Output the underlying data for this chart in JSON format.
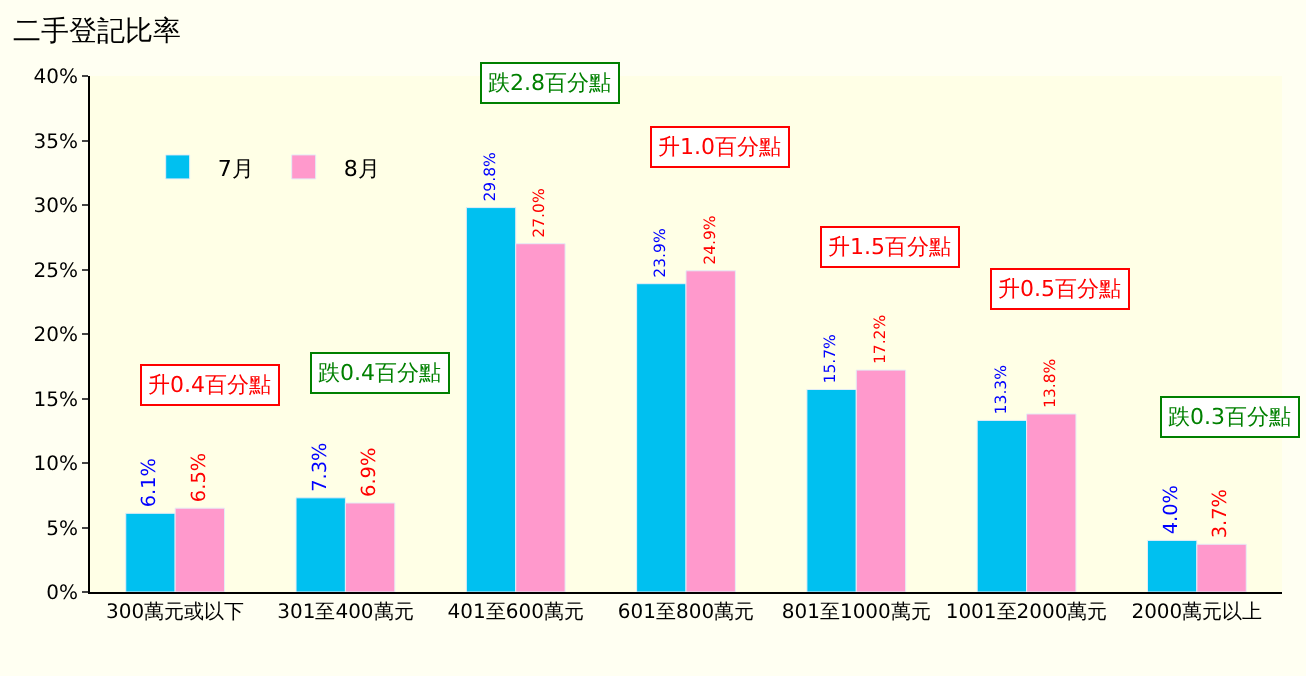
{
  "chart_data": {
    "type": "bar",
    "title": "二手登記比率",
    "categories": [
      "300萬元或以下",
      "301至400萬元",
      "401至600萬元",
      "601至800萬元",
      "801至1000萬元",
      "1001至2000萬元",
      "2000萬元以上"
    ],
    "series": [
      {
        "name": "7月",
        "color": "#00c0f0",
        "values": [
          6.1,
          7.3,
          29.8,
          23.9,
          15.7,
          13.3,
          4.0
        ],
        "value_labels": [
          "6.1%",
          "7.3%",
          "29.8%",
          "23.9%",
          "15.7%",
          "13.3%",
          "4.0%"
        ]
      },
      {
        "name": "8月",
        "color": "#ff99cc",
        "values": [
          6.5,
          6.9,
          27.0,
          24.9,
          17.2,
          13.8,
          3.7
        ],
        "value_labels": [
          "6.5%",
          "6.9%",
          "27.0%",
          "24.9%",
          "17.2%",
          "13.8%",
          "3.7%"
        ]
      }
    ],
    "ylim": [
      0,
      40
    ],
    "yticks": [
      {
        "value": 0,
        "label": "0%"
      },
      {
        "value": 5,
        "label": "5%"
      },
      {
        "value": 10,
        "label": "10%"
      },
      {
        "value": 15,
        "label": "15%"
      },
      {
        "value": 20,
        "label": "20%"
      },
      {
        "value": 25,
        "label": "25%"
      },
      {
        "value": 30,
        "label": "30%"
      },
      {
        "value": 35,
        "label": "35%"
      },
      {
        "value": 40,
        "label": "40%"
      }
    ],
    "annotations": [
      "升0.4百分點",
      "跌0.4百分點",
      "跌2.8百分點",
      "升1.0百分點",
      "升1.5百分點",
      "升0.5百分點",
      "跌0.3百分點"
    ],
    "legend": "top left",
    "grid": false
  }
}
